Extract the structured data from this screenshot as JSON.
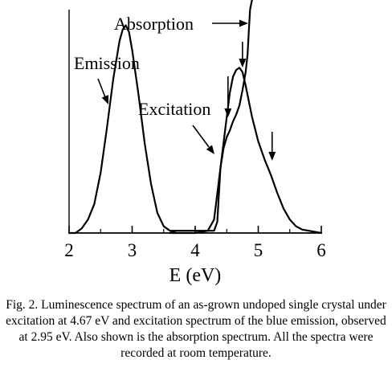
{
  "chart_data": {
    "type": "line",
    "xlabel": "E (eV)",
    "xlim": [
      2,
      6
    ],
    "ylim": [
      0,
      1
    ],
    "xticks": [
      "2",
      "3",
      "4",
      "5",
      "6"
    ],
    "grid": false,
    "series": [
      {
        "name": "Emission",
        "x": [
          2.0,
          2.1,
          2.2,
          2.3,
          2.4,
          2.5,
          2.6,
          2.7,
          2.8,
          2.85,
          2.9,
          2.95,
          3.0,
          3.1,
          3.2,
          3.3,
          3.4,
          3.5,
          3.6,
          3.7
        ],
        "values": [
          0.0,
          0.0,
          0.02,
          0.06,
          0.13,
          0.27,
          0.47,
          0.69,
          0.86,
          0.91,
          0.93,
          0.9,
          0.82,
          0.62,
          0.4,
          0.22,
          0.09,
          0.03,
          0.01,
          0.0
        ]
      },
      {
        "name": "Excitation",
        "x": [
          3.6,
          4.0,
          4.2,
          4.3,
          4.4,
          4.5,
          4.55,
          4.6,
          4.65,
          4.7,
          4.75,
          4.8,
          4.9,
          5.0,
          5.1,
          5.2,
          5.3,
          5.4,
          5.5,
          5.6,
          5.7,
          5.8,
          5.9,
          6.0
        ],
        "values": [
          0.0,
          0.0,
          0.01,
          0.06,
          0.29,
          0.52,
          0.63,
          0.7,
          0.73,
          0.74,
          0.72,
          0.66,
          0.52,
          0.41,
          0.33,
          0.26,
          0.18,
          0.11,
          0.06,
          0.03,
          0.015,
          0.01,
          0.005,
          0.0
        ]
      },
      {
        "name": "Absorption",
        "x": [
          3.6,
          4.3,
          4.35,
          4.4,
          4.45,
          4.5,
          4.55,
          4.6,
          4.65,
          4.7,
          4.75,
          4.8,
          4.83,
          4.85,
          4.87,
          4.9
        ],
        "values": [
          0.01,
          0.01,
          0.05,
          0.29,
          0.38,
          0.43,
          0.46,
          0.5,
          0.53,
          0.57,
          0.64,
          0.72,
          0.8,
          0.9,
          1.0,
          1.08
        ]
      }
    ],
    "annotations": {
      "absorption_label": "Absorption",
      "emission_label": "Emission",
      "excitation_label": "Excitation",
      "peak_arrows_ev": [
        4.52,
        4.75,
        5.22
      ]
    }
  },
  "caption": "Fig. 2. Luminescence spectrum of an as-grown undoped single crystal under excitation at 4.67 eV and excitation spectrum of the blue emission, observed at 2.95 eV. Also shown is the absorption spectrum. All the spectra were recorded at room temperature."
}
